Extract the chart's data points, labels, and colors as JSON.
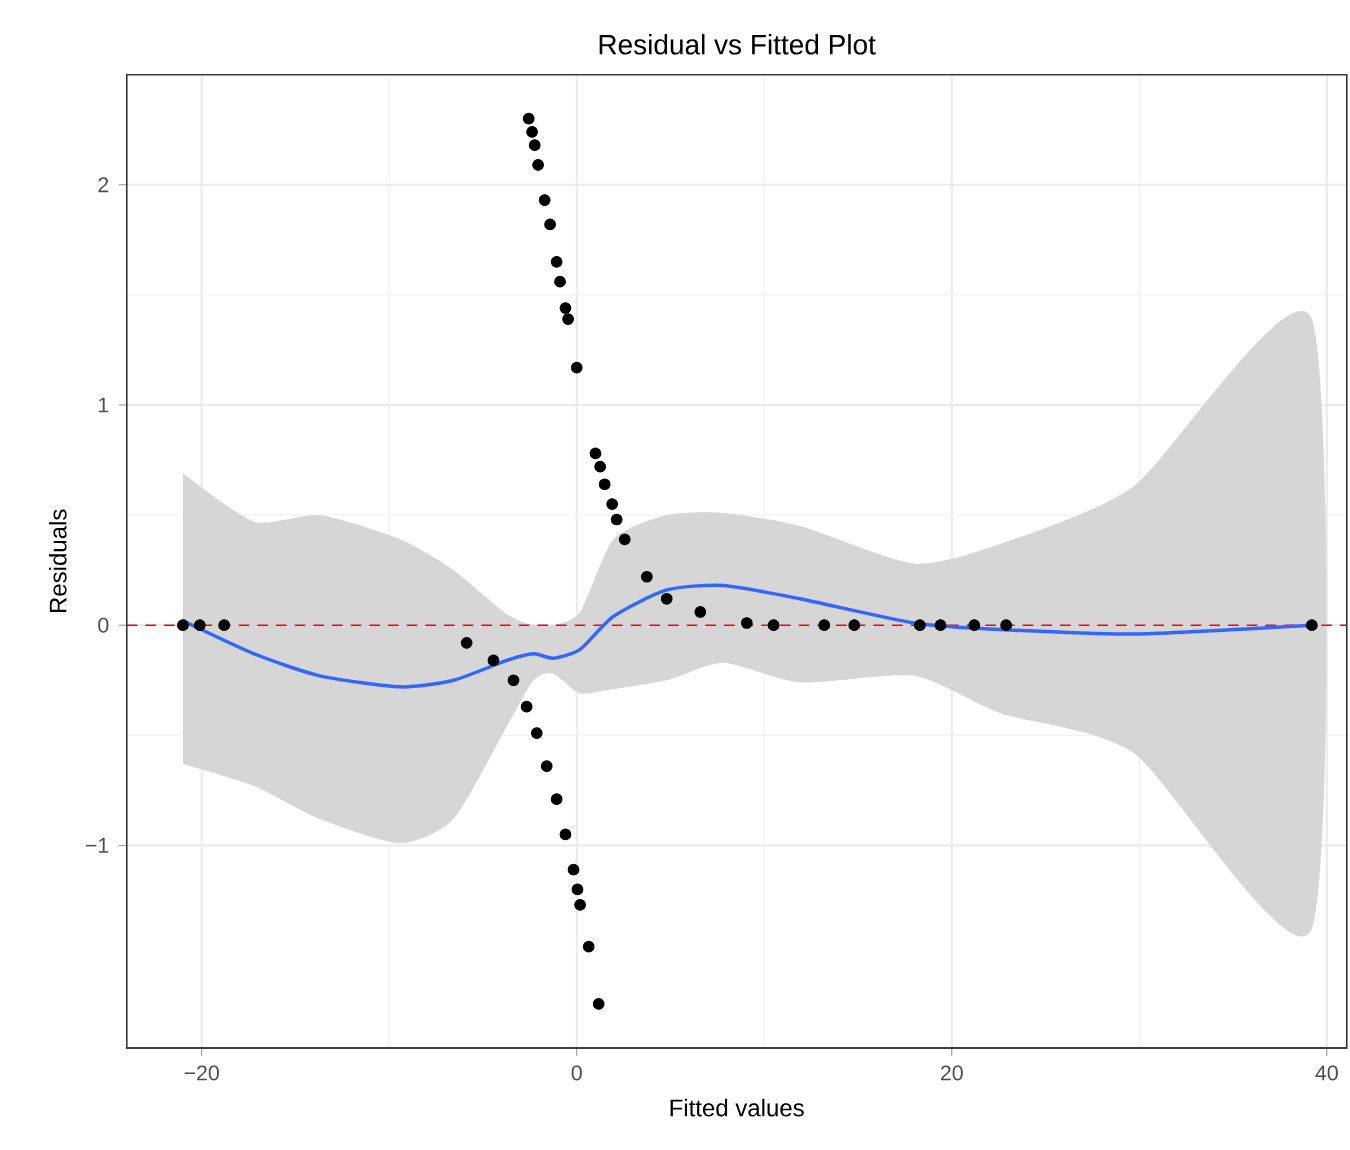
{
  "chart_data": {
    "type": "scatter",
    "title": "Residual vs Fitted Plot",
    "xlabel": "Fitted values",
    "ylabel": "Residuals",
    "xlim": [
      -24.0,
      41.06
    ],
    "ylim": [
      -1.92,
      2.5
    ],
    "xticks": [
      {
        "value": -20,
        "label": "−20"
      },
      0,
      20,
      40
    ],
    "yticks": [
      {
        "value": -1,
        "label": "−1"
      },
      0,
      1,
      2
    ],
    "grid": true,
    "ref_lines": [
      {
        "axis": "y",
        "value": 0,
        "color": "#ff0000",
        "line_style": "dashed"
      }
    ],
    "series": [
      {
        "marker": "circle",
        "color": "#000000",
        "x": [
          -21.0,
          -20.1,
          -18.8,
          -5.87,
          -4.44,
          -3.37,
          -2.67,
          -2.13,
          -1.6,
          -1.07,
          -0.6,
          -0.17,
          0.04,
          0.18,
          0.64,
          1.17,
          -2.56,
          -2.38,
          -2.24,
          -2.06,
          -1.71,
          -1.42,
          -1.07,
          -0.89,
          -0.6,
          -0.46,
          0.0,
          1.0,
          1.25,
          1.49,
          1.89,
          2.13,
          2.56,
          3.74,
          4.8,
          6.59,
          9.07,
          10.5,
          13.2,
          14.8,
          18.3,
          19.4,
          21.2,
          22.9,
          39.2
        ],
        "values": [
          0,
          0,
          0,
          -0.08,
          -0.16,
          -0.25,
          -0.37,
          -0.49,
          -0.64,
          -0.79,
          -0.95,
          -1.11,
          -1.2,
          -1.27,
          -1.46,
          -1.72,
          2.3,
          2.24,
          2.18,
          2.09,
          1.93,
          1.82,
          1.65,
          1.56,
          1.44,
          1.39,
          1.17,
          0.78,
          0.72,
          0.64,
          0.55,
          0.48,
          0.39,
          0.22,
          0.12,
          0.06,
          0.01,
          0,
          0,
          0,
          0,
          0,
          0,
          0,
          0
        ]
      },
      {
        "type": "line",
        "line_style": "solid",
        "color": "#3366ff",
        "x": [
          -21.0,
          -17.2,
          -13.7,
          -9.42,
          -6.57,
          -3.73,
          -2.3,
          -1.24,
          0.18,
          1.96,
          4.8,
          7.83,
          11.9,
          18.0,
          22.6,
          29.7,
          39.2
        ],
        "values": [
          0.02,
          -0.13,
          -0.23,
          -0.28,
          -0.25,
          -0.16,
          -0.13,
          -0.15,
          -0.11,
          0.04,
          0.16,
          0.18,
          0.12,
          0.01,
          -0.02,
          -0.04,
          0.0
        ],
        "upper": [
          0.69,
          0.47,
          0.5,
          0.39,
          0.25,
          0.05,
          0.0,
          0.0,
          0.06,
          0.39,
          0.5,
          0.51,
          0.45,
          0.28,
          0.37,
          0.63,
          1.39
        ],
        "lower": [
          -0.63,
          -0.73,
          -0.88,
          -0.99,
          -0.88,
          -0.46,
          -0.25,
          -0.22,
          -0.31,
          -0.29,
          -0.25,
          -0.17,
          -0.26,
          -0.23,
          -0.4,
          -0.58,
          -1.38
        ]
      }
    ]
  }
}
